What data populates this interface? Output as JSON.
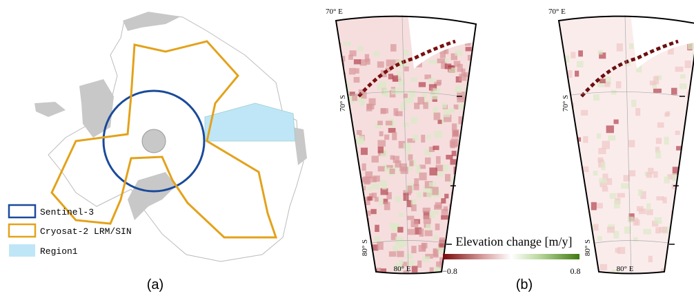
{
  "panel_a": {
    "label": "(a)",
    "legend": [
      "Sentinel-3",
      "Cryosat-2 LRM/SIN",
      "Region1"
    ]
  },
  "panel_b": {
    "label": "(b)",
    "colorbar": {
      "title": "Elevation change [m/y]",
      "min_label": "−0.8",
      "max_label": "0.8"
    },
    "maps": [
      {
        "top_label": "70° E",
        "lat_labels": [
          "70° S",
          "80° S"
        ],
        "lon_label": "80° E"
      },
      {
        "top_label": "70° E",
        "lat_labels": [
          "70° S",
          "80° S"
        ],
        "lon_label": "80° E"
      }
    ]
  }
}
